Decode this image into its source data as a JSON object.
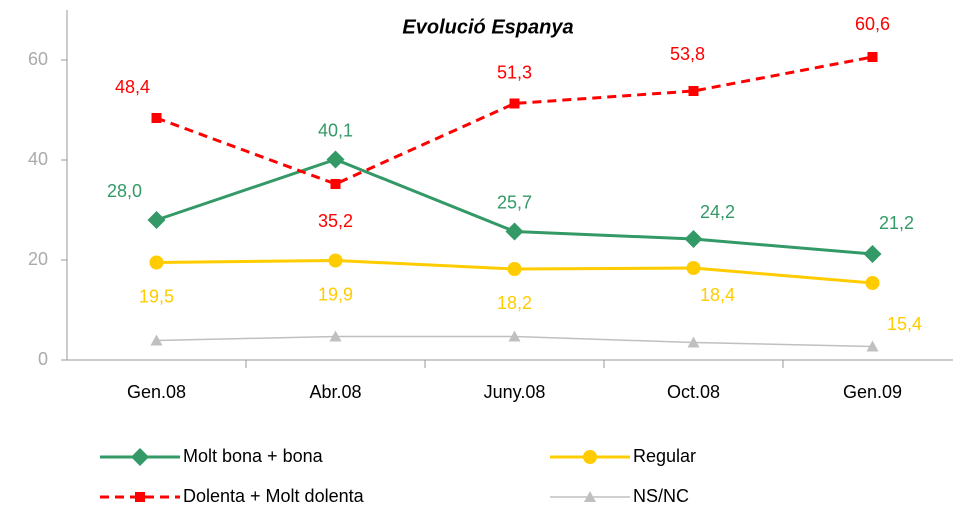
{
  "chart_data": {
    "type": "line",
    "title": "Evolució Espanya",
    "categories": [
      "Gen.08",
      "Abr.08",
      "Juny.08",
      "Oct.08",
      "Gen.09"
    ],
    "ylim": [
      0,
      70
    ],
    "yticks": [
      0,
      20,
      40,
      60
    ],
    "grid": false,
    "series": [
      {
        "name": "Molt bona + bona",
        "color": "#339966",
        "marker": "diamond",
        "dash": false,
        "values": [
          28.0,
          40.1,
          25.7,
          24.2,
          21.2
        ],
        "value_labels": [
          "28,0",
          "40,1",
          "25,7",
          "24,2",
          "21,2"
        ]
      },
      {
        "name": "Regular",
        "color": "#ffcc00",
        "marker": "circle",
        "dash": false,
        "values": [
          19.5,
          19.9,
          18.2,
          18.4,
          15.4
        ],
        "value_labels": [
          "19,5",
          "19,9",
          "18,2",
          "18,4",
          "15,4"
        ]
      },
      {
        "name": "Dolenta + Molt dolenta",
        "color": "#ff0000",
        "marker": "square",
        "dash": true,
        "values": [
          48.4,
          35.2,
          51.3,
          53.8,
          60.6
        ],
        "value_labels": [
          "48,4",
          "35,2",
          "51,3",
          "53,8",
          "60,6"
        ]
      },
      {
        "name": "NS/NC",
        "color": "#c0c0c0",
        "marker": "triangle",
        "dash": false,
        "values": [
          3.9,
          4.7,
          4.7,
          3.5,
          2.7
        ]
      }
    ]
  }
}
